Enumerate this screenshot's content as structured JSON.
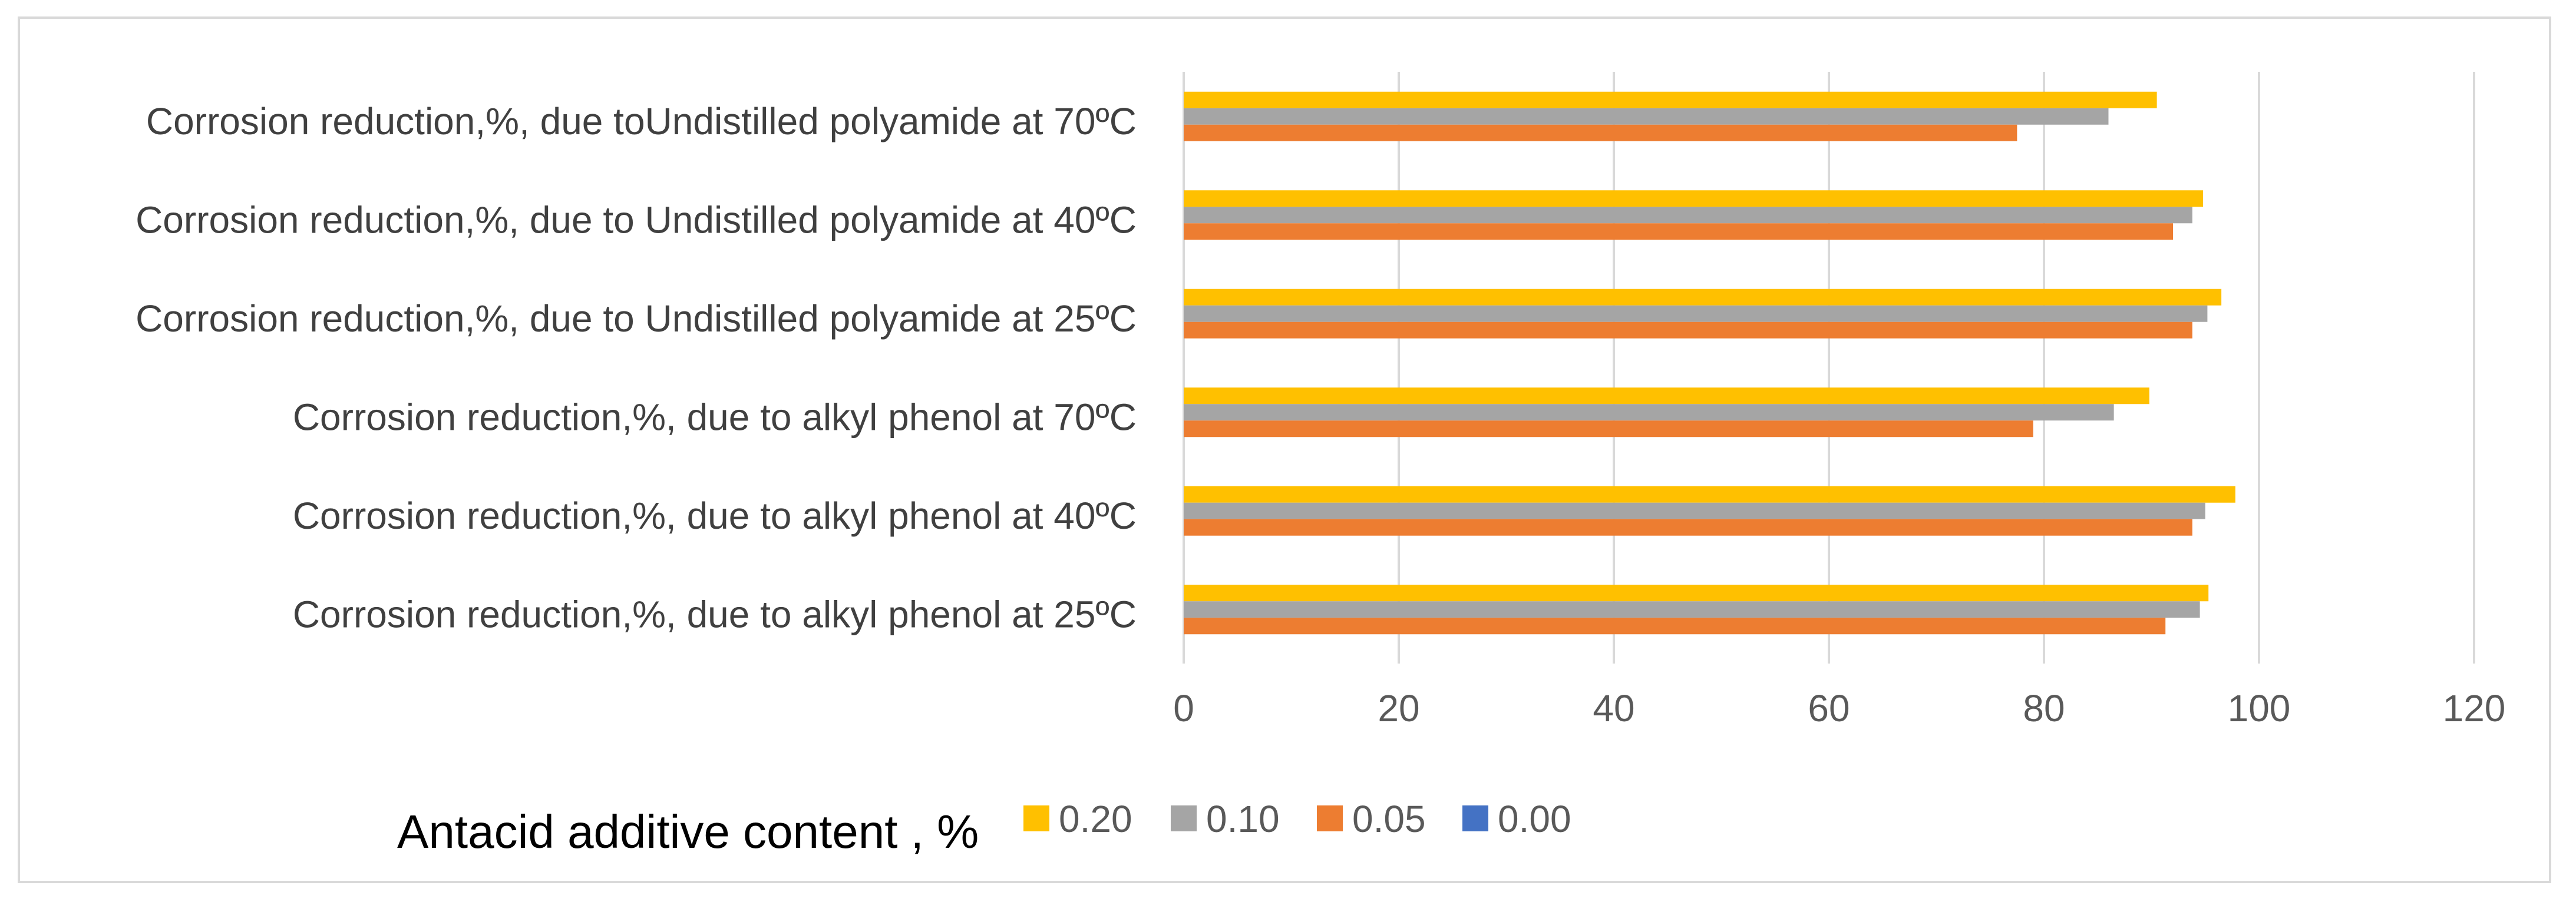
{
  "chart_data": {
    "type": "bar",
    "orientation": "horizontal",
    "categories": [
      "Corrosion reduction,%, due toUndistilled polyamide at 70ºC",
      "Corrosion reduction,%, due to Undistilled polyamide at 40ºC",
      "Corrosion reduction,%, due to Undistilled polyamide at 25ºC",
      "Corrosion reduction,%, due to alkyl phenol at 70ºC",
      "Corrosion reduction,%, due to alkyl phenol at 40ºC",
      "Corrosion reduction,%, due to alkyl phenol at 25ºC"
    ],
    "series": [
      {
        "name": "0.20",
        "color": "#ffc000",
        "values": [
          90.5,
          94.8,
          96.5,
          89.8,
          97.8,
          95.3
        ]
      },
      {
        "name": "0.10",
        "color": "#a5a5a5",
        "values": [
          86.0,
          93.8,
          95.2,
          86.5,
          95.0,
          94.5
        ]
      },
      {
        "name": "0.05",
        "color": "#ed7d31",
        "values": [
          77.5,
          92.0,
          93.8,
          79.0,
          93.8,
          91.3
        ]
      },
      {
        "name": "0.00",
        "color": "#4472c4",
        "values": [
          0,
          0,
          0,
          0,
          0,
          0
        ]
      }
    ],
    "xlim": [
      0,
      120
    ],
    "ticks": [
      "0",
      "20",
      "40",
      "60",
      "80",
      "100",
      "120"
    ],
    "grid": true,
    "legend_position": "bottom",
    "legend_order": [
      "0.20",
      "0.10",
      "0.05",
      "0.00"
    ],
    "legend_title": "Antacid additive content , %",
    "title": "",
    "xlabel": "",
    "ylabel": ""
  }
}
